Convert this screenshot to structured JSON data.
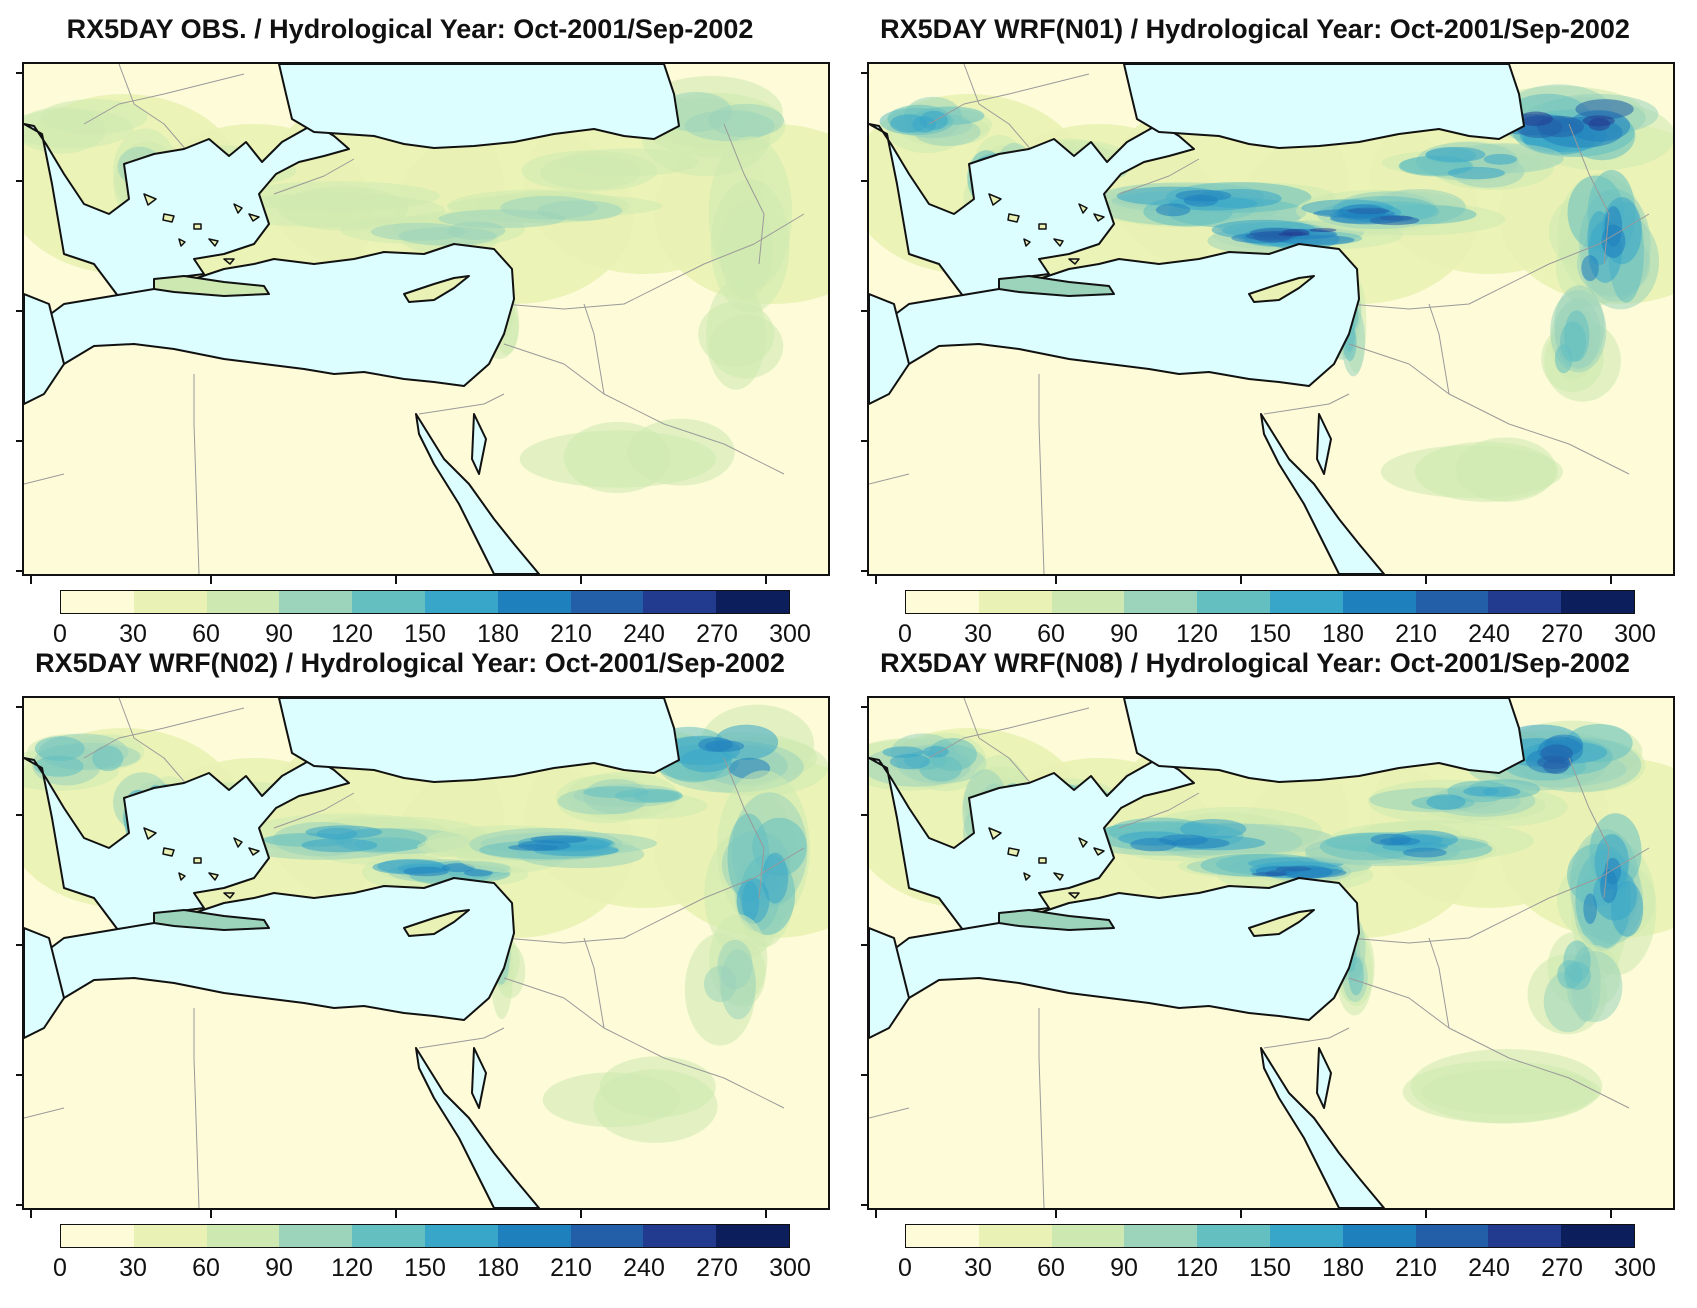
{
  "panels": [
    {
      "title": "RX5DAY OBS. / Hydrological Year: Oct-2001/Sep-2002",
      "intensity": 0.25
    },
    {
      "title": "RX5DAY WRF(N01) / Hydrological Year: Oct-2001/Sep-2002",
      "intensity": 1.0
    },
    {
      "title": "RX5DAY WRF(N02) / Hydrological Year: Oct-2001/Sep-2002",
      "intensity": 0.75
    },
    {
      "title": "RX5DAY WRF(N08) / Hydrological Year: Oct-2001/Sep-2002",
      "intensity": 0.9
    }
  ],
  "colorbar": {
    "labels": [
      "0",
      "30",
      "60",
      "90",
      "120",
      "150",
      "180",
      "210",
      "240",
      "270",
      "300"
    ],
    "colors": [
      "#fdfbd8",
      "#e9f2b4",
      "#cde9b1",
      "#9bd4bb",
      "#64bfc1",
      "#38a6c8",
      "#1f80be",
      "#225fa8",
      "#233b8f",
      "#0c1f5c"
    ]
  },
  "palette": {
    "sea": "#dcfeff",
    "land": "#fdfbd8",
    "coast": "#111111",
    "border": "#9a9a9a"
  }
}
